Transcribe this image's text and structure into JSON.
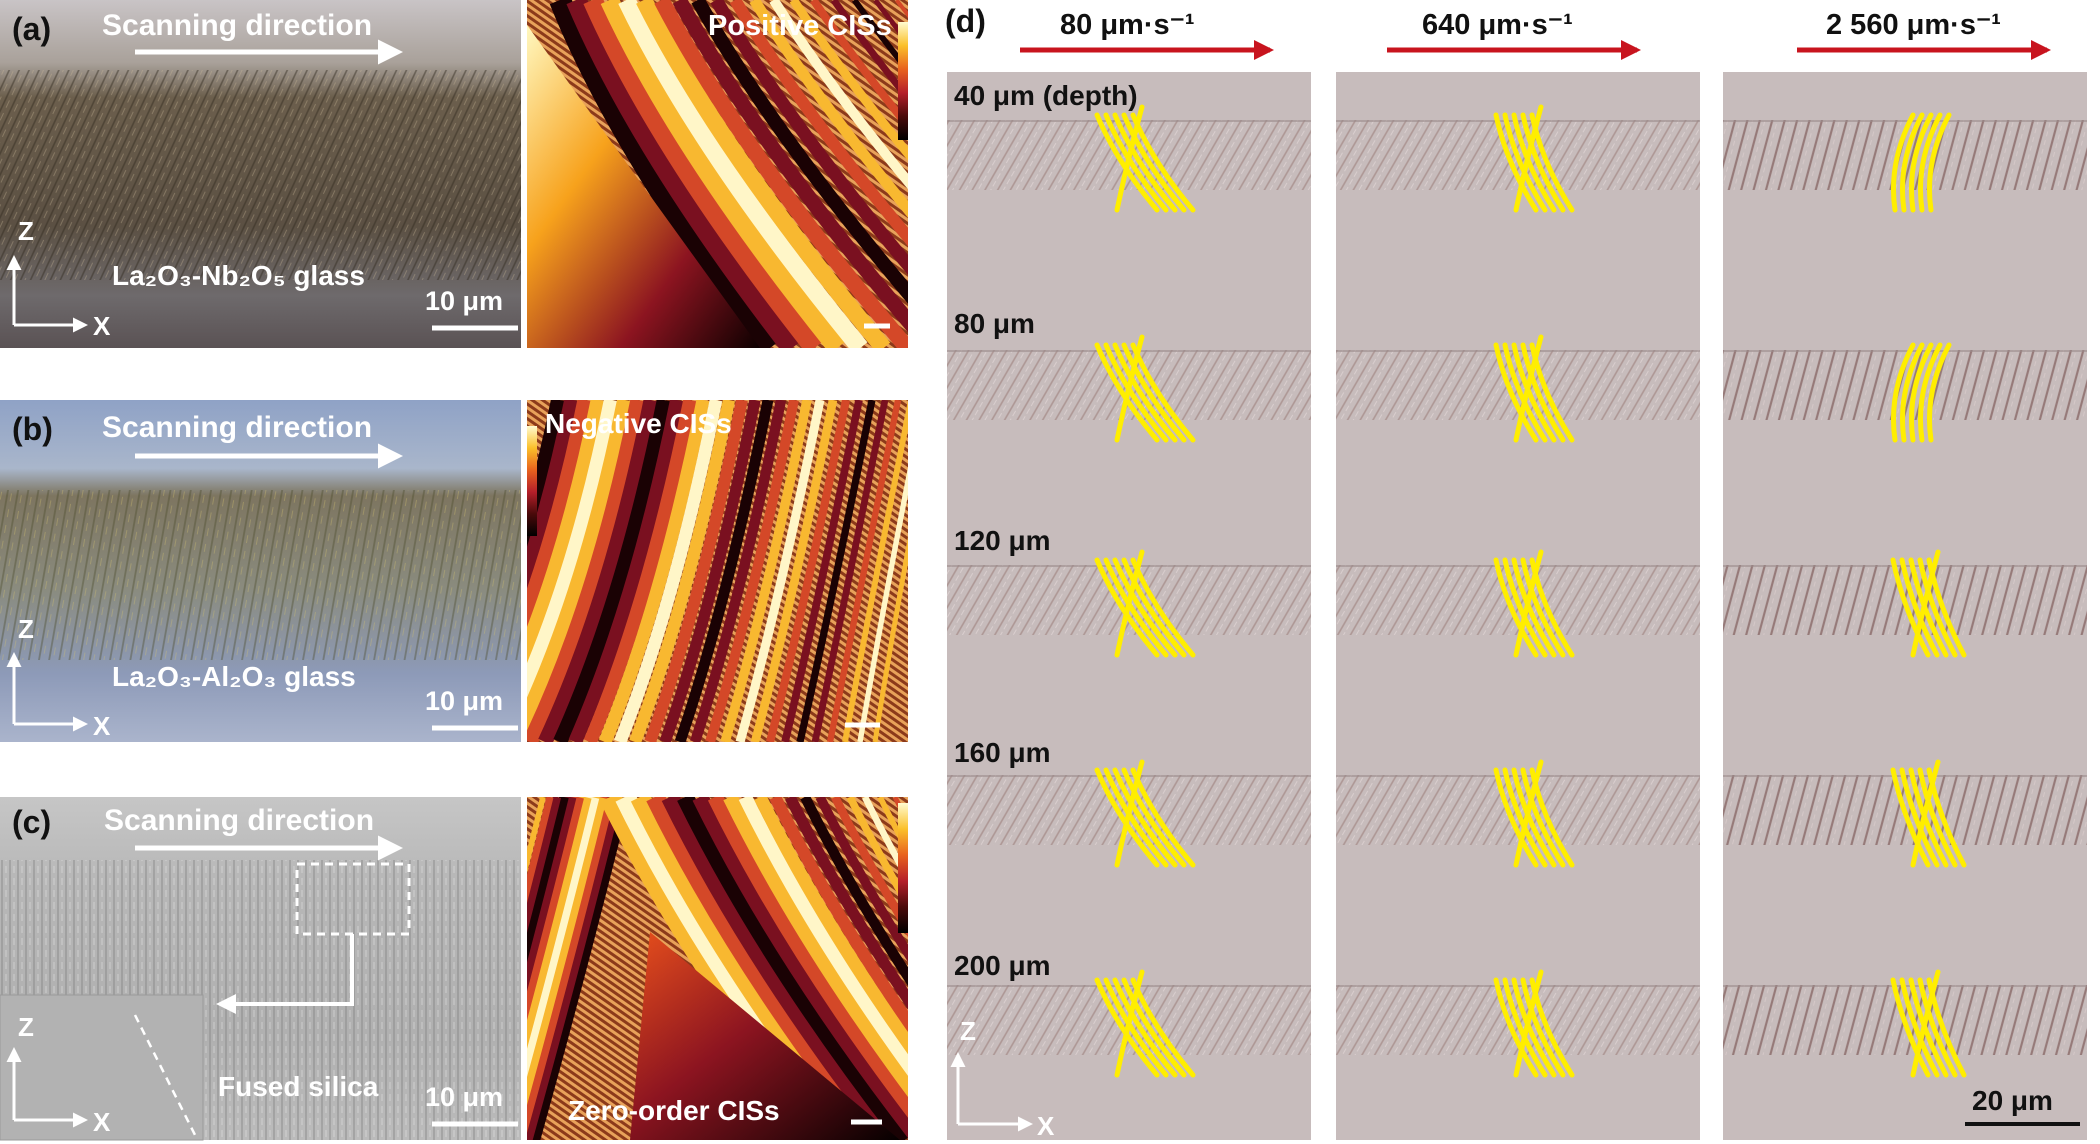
{
  "panel_a": {
    "label": "(a)",
    "scan_text": "Scanning direction",
    "glass_name": "La₂O₃-Nb₂O₅ glass",
    "scale_text": "10 μm",
    "axis_z": "Z",
    "axis_x": "X",
    "sim_label": "Positive CISs"
  },
  "panel_b": {
    "label": "(b)",
    "scan_text": "Scanning direction",
    "glass_name": "La₂O₃-Al₂O₃ glass",
    "scale_text": "10 μm",
    "axis_z": "Z",
    "axis_x": "X",
    "sim_label": "Negative CISs"
  },
  "panel_c": {
    "label": "(c)",
    "scan_text": "Scanning direction",
    "glass_name": "Fused silica",
    "scale_text": "10 μm",
    "axis_z": "Z",
    "axis_x": "X",
    "sim_label": "Zero-order CISs"
  },
  "panel_d": {
    "label": "(d)",
    "speeds": [
      "80 μm·s⁻¹",
      "640 μm·s⁻¹",
      "2 560 μm·s⁻¹"
    ],
    "depths": [
      "40 μm (depth)",
      "80 μm",
      "120 μm",
      "160 μm",
      "200 μm"
    ],
    "axis_z": "Z",
    "axis_x": "X",
    "scale_text": "20 μm"
  },
  "colors": {
    "arrow_red": "#c8141e",
    "marker_yellow": "#ffee00",
    "bg_a": "#6e6252",
    "bg_b": "#8a95a8",
    "bg_c": "#bdbdbd",
    "bg_d": "#c7bcbc"
  }
}
